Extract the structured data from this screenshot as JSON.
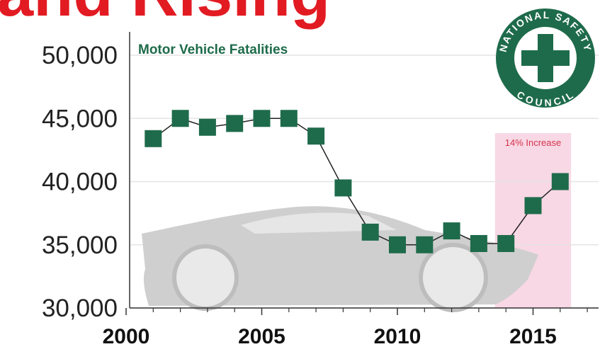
{
  "chart_data": {
    "type": "line",
    "title": "and Rising",
    "subtitle": "Motor Vehicle Fatalities",
    "x": [
      2001,
      2002,
      2003,
      2004,
      2005,
      2006,
      2007,
      2008,
      2009,
      2010,
      2011,
      2012,
      2013,
      2014,
      2015,
      2016
    ],
    "series": [
      {
        "name": "Motor Vehicle Fatalities",
        "color": "#1e6b4b",
        "values": [
          43400,
          45000,
          44300,
          44600,
          45000,
          45000,
          43600,
          39500,
          36000,
          35000,
          35000,
          36100,
          35100,
          35100,
          38100,
          40000
        ]
      }
    ],
    "xlim": [
      2000,
      2017.4
    ],
    "ylim": [
      30000,
      50000
    ],
    "xticks": [
      2000,
      2005,
      2010,
      2015
    ],
    "xminorticks": [
      2001,
      2002,
      2003,
      2004,
      2006,
      2007,
      2008,
      2009,
      2011,
      2012,
      2013,
      2014,
      2016,
      2017
    ],
    "yticks": [
      {
        "value": 30000,
        "label": "30,000"
      },
      {
        "value": 35000,
        "label": "35,000"
      },
      {
        "value": 40000,
        "label": "40,000"
      },
      {
        "value": 45000,
        "label": "45,000"
      },
      {
        "value": 50000,
        "label": "50,000"
      }
    ],
    "grid": true,
    "highlight": {
      "x": [
        2013.6,
        2016.4
      ],
      "color": "#f8d8e4",
      "annotation": "14% Increase",
      "annotation_color": "#d6334f"
    },
    "logo": {
      "top": "NATIONAL SAFETY",
      "bottom": "COUNCIL",
      "color": "#1e6b4b"
    }
  }
}
